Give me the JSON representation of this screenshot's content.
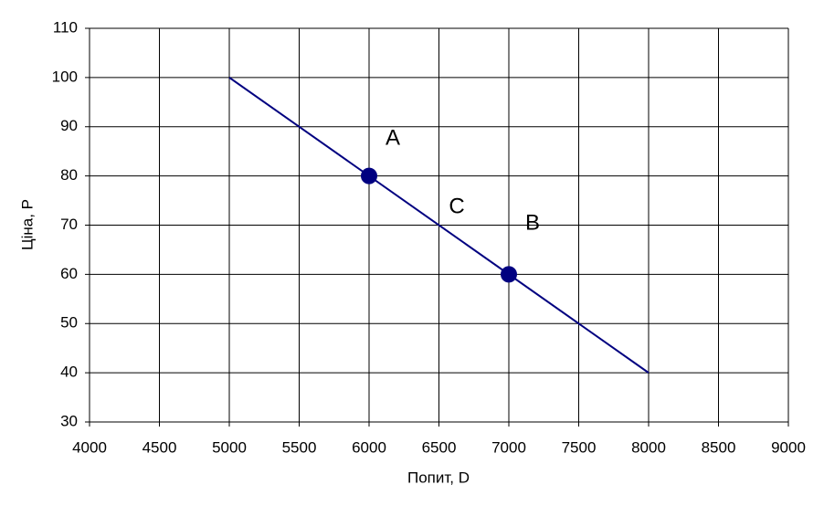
{
  "chart_data": {
    "type": "line",
    "xlabel": "Попит, D",
    "ylabel": "Ціна, P",
    "xlim": [
      4000,
      9000
    ],
    "xticks": [
      4000,
      4500,
      5000,
      5500,
      6000,
      6500,
      7000,
      7500,
      8000,
      8500,
      9000
    ],
    "ylim": [
      30,
      110
    ],
    "yticks": [
      30,
      40,
      50,
      60,
      70,
      80,
      90,
      100,
      110
    ],
    "grid": true,
    "series": [
      {
        "type": "line",
        "color": "#000080",
        "x": [
          5000,
          8000
        ],
        "values": [
          100,
          40
        ]
      },
      {
        "type": "scatter",
        "color": "#000080",
        "x": [
          6000,
          7000
        ],
        "values": [
          80,
          60
        ]
      }
    ],
    "annotations": [
      "A",
      "B",
      "C"
    ]
  }
}
